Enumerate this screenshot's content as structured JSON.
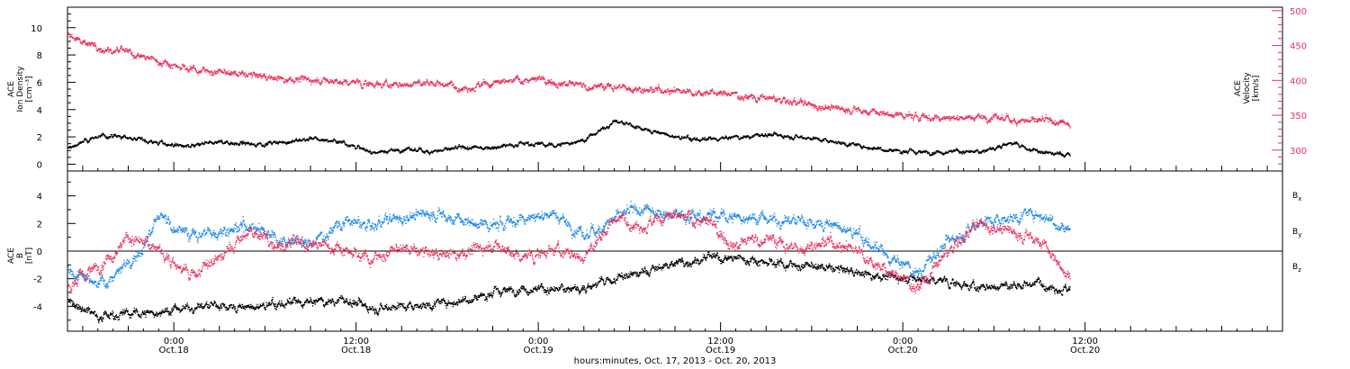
{
  "chart_data": [
    {
      "type": "scatter",
      "panel": "top",
      "ylabel_lines": [
        "ACE",
        "Ion Density",
        "[cm⁻³]"
      ],
      "ylabel_right_lines": [
        "ACE",
        "Velocity",
        "[km/s]"
      ],
      "y_ticks": [
        0,
        2,
        4,
        6,
        8,
        10
      ],
      "ylim": [
        -0.5,
        11.5
      ],
      "y2_ticks": [
        300,
        350,
        400,
        450,
        500
      ],
      "y2lim": [
        270,
        505
      ],
      "series": [
        {
          "id": "density",
          "color": "#000000",
          "axis": "left",
          "x": [
            0,
            2,
            4,
            6,
            8,
            10,
            12,
            14,
            16,
            18,
            20,
            22,
            24,
            26,
            28,
            30,
            32,
            34,
            36,
            38,
            40,
            42,
            44,
            46,
            48,
            50,
            52,
            54,
            56,
            58,
            60,
            62,
            64,
            66
          ],
          "y": [
            1.2,
            2.1,
            2.0,
            1.6,
            1.3,
            1.7,
            1.5,
            1.6,
            1.9,
            1.7,
            0.9,
            1.1,
            1.0,
            1.2,
            1.3,
            1.6,
            1.4,
            1.8,
            3.2,
            2.6,
            2.0,
            1.8,
            2.0,
            2.2,
            2.1,
            1.8,
            1.4,
            1.1,
            0.9,
            1.0,
            0.9,
            1.6,
            0.9,
            0.7
          ]
        },
        {
          "id": "velocity",
          "color": "#e8325e",
          "axis": "right",
          "x": [
            0,
            2,
            4,
            6,
            8,
            10,
            12,
            14,
            16,
            18,
            20,
            22,
            24,
            26,
            28,
            30,
            32,
            34,
            36,
            38,
            40,
            42,
            44,
            46,
            48,
            50,
            52,
            54,
            56,
            58,
            60,
            62,
            64,
            66
          ],
          "y": [
            465,
            448,
            440,
            428,
            418,
            412,
            408,
            404,
            402,
            398,
            396,
            394,
            398,
            392,
            395,
            402,
            400,
            392,
            392,
            388,
            387,
            384,
            380,
            375,
            368,
            362,
            358,
            352,
            348,
            348,
            348,
            345,
            342,
            338
          ]
        }
      ]
    },
    {
      "type": "scatter",
      "panel": "bottom",
      "ylabel_lines": [
        "ACE",
        "B",
        "[nT]"
      ],
      "y_ticks": [
        -4,
        -2,
        0,
        2,
        4
      ],
      "ylim": [
        -5.8,
        5.8
      ],
      "zero_line": true,
      "series": [
        {
          "name": "Bx",
          "color": "#000000",
          "x": [
            0,
            2,
            4,
            6,
            8,
            10,
            12,
            14,
            16,
            18,
            20,
            22,
            24,
            26,
            28,
            30,
            32,
            34,
            36,
            38,
            40,
            42,
            44,
            46,
            48,
            50,
            52,
            54,
            56,
            58,
            60,
            62,
            64,
            66
          ],
          "y": [
            -3.5,
            -4.6,
            -4.5,
            -4.4,
            -4.0,
            -3.9,
            -4.1,
            -3.8,
            -3.7,
            -3.5,
            -4.0,
            -3.9,
            -3.8,
            -3.5,
            -3.0,
            -2.6,
            -2.8,
            -2.6,
            -2.0,
            -1.5,
            -0.8,
            -0.5,
            -0.5,
            -0.7,
            -1.0,
            -1.2,
            -1.5,
            -1.8,
            -2.0,
            -2.2,
            -2.6,
            -2.5,
            -2.2,
            -2.8
          ]
        },
        {
          "name": "By",
          "color": "#1e88e5",
          "x": [
            0,
            2,
            4,
            6,
            8,
            10,
            12,
            14,
            16,
            18,
            20,
            22,
            24,
            26,
            28,
            30,
            32,
            34,
            36,
            38,
            40,
            42,
            44,
            46,
            48,
            50,
            52,
            54,
            56,
            58,
            60,
            62,
            64,
            66
          ],
          "y": [
            -1.5,
            -2.5,
            -1.0,
            2.5,
            1.2,
            1.5,
            2.0,
            1.0,
            0.5,
            2.2,
            1.8,
            2.5,
            2.8,
            2.2,
            1.8,
            2.5,
            2.8,
            1.0,
            2.5,
            3.0,
            2.8,
            2.6,
            2.5,
            2.4,
            2.2,
            2.0,
            1.2,
            -0.5,
            -1.5,
            0.8,
            2.2,
            2.5,
            2.8,
            1.5
          ]
        },
        {
          "name": "Bz",
          "color": "#e8325e",
          "x": [
            0,
            2,
            4,
            6,
            8,
            10,
            12,
            14,
            16,
            18,
            20,
            22,
            24,
            26,
            28,
            30,
            32,
            34,
            36,
            38,
            40,
            42,
            44,
            46,
            48,
            50,
            52,
            54,
            56,
            58,
            60,
            62,
            64,
            66
          ],
          "y": [
            -2.5,
            -1.0,
            1.0,
            0.2,
            -1.8,
            -0.5,
            1.5,
            0.5,
            0.5,
            0.3,
            -0.5,
            0.2,
            -0.2,
            0.0,
            0.5,
            -0.5,
            0.2,
            -0.5,
            2.5,
            2.0,
            2.5,
            2.2,
            0.5,
            1.0,
            0.2,
            0.8,
            0.2,
            -1.5,
            -2.5,
            0.0,
            2.0,
            1.5,
            0.8,
            -2.0
          ]
        }
      ],
      "legend": [
        {
          "label": "B",
          "sub": "x",
          "color": "#000000"
        },
        {
          "label": "B",
          "sub": "y",
          "color": "#1e88e5"
        },
        {
          "label": "B",
          "sub": "z",
          "color": "#e8325e"
        }
      ]
    }
  ],
  "x_axis": {
    "range_hours": [
      0,
      80
    ],
    "major_ticks": [
      {
        "x": 7,
        "time": "0:00",
        "date": "Oct.18"
      },
      {
        "x": 19,
        "time": "12:00",
        "date": "Oct.18"
      },
      {
        "x": 31,
        "time": "0:00",
        "date": "Oct.19"
      },
      {
        "x": 43,
        "time": "12:00",
        "date": "Oct.19"
      },
      {
        "x": 55,
        "time": "0:00",
        "date": "Oct.20"
      },
      {
        "x": 67,
        "time": "12:00",
        "date": "Oct.20"
      }
    ],
    "xlabel": "hours:minutes, Oct. 17, 2013 - Oct. 20, 2013"
  },
  "colors": {
    "black": "#000000",
    "pink": "#e8325e",
    "blue": "#1e88e5"
  }
}
